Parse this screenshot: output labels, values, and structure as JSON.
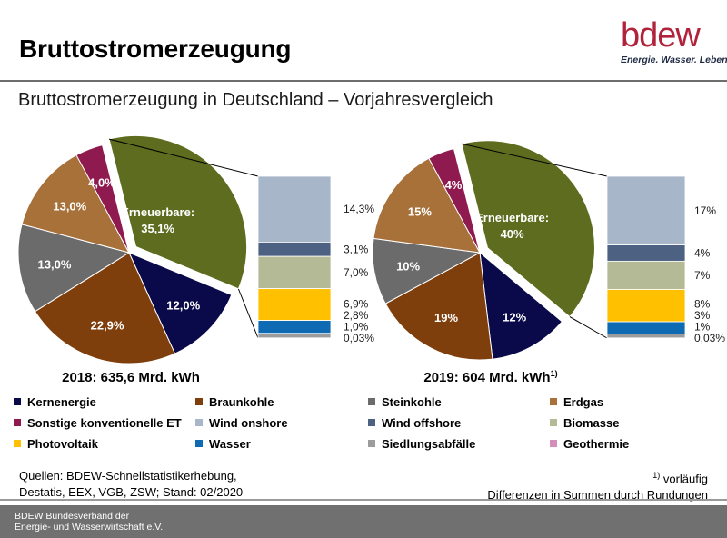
{
  "title": "Bruttostromerzeugung",
  "logo": {
    "word": "bdew",
    "tagline": "Energie. Wasser. Leben."
  },
  "subtitle": "Bruttostromerzeugung in Deutschland – Vorjahresvergleich",
  "colors": {
    "kernenergie": "#0a0a4a",
    "braunkohle": "#7f3f0d",
    "steinkohle": "#6b6b6b",
    "erdgas": "#a9713a",
    "sonstige": "#8f1a4f",
    "erneuerbare": "#5d6c1f",
    "wind_onshore": "#a7b6c9",
    "wind_offshore": "#4d6282",
    "biomasse": "#b4ba95",
    "photovoltaik": "#ffc000",
    "wasser": "#0f6ab4",
    "siedlungsabfaelle": "#9c9c9c",
    "geothermie": "#d38fb8"
  },
  "chart_data": [
    {
      "type": "pie",
      "title": "2018: 635,6 Mrd. kWh",
      "footnote_mark": "",
      "slices": [
        {
          "key": "erneuerbare",
          "label": "Erneuerbare:",
          "value": 35.1,
          "text": "35,1%"
        },
        {
          "key": "kernenergie",
          "label": "",
          "value": 12.0,
          "text": "12,0%"
        },
        {
          "key": "braunkohle",
          "label": "",
          "value": 22.9,
          "text": "22,9%"
        },
        {
          "key": "steinkohle",
          "label": "",
          "value": 13.0,
          "text": "13,0%"
        },
        {
          "key": "erdgas",
          "label": "",
          "value": 13.0,
          "text": "13,0%"
        },
        {
          "key": "sonstige",
          "label": "",
          "value": 4.0,
          "text": "4,0%"
        }
      ],
      "breakdown": [
        {
          "key": "wind_onshore",
          "value": 14.3,
          "text": "14,3%"
        },
        {
          "key": "wind_offshore",
          "value": 3.1,
          "text": "3,1%"
        },
        {
          "key": "biomasse",
          "value": 7.0,
          "text": "7,0%"
        },
        {
          "key": "photovoltaik",
          "value": 6.9,
          "text": "6,9%"
        },
        {
          "key": "wasser",
          "value": 2.8,
          "text": "2,8%"
        },
        {
          "key": "siedlungsabfaelle",
          "value": 1.0,
          "text": "1,0%"
        },
        {
          "key": "geothermie",
          "value": 0.03,
          "text": "0,03%"
        }
      ]
    },
    {
      "type": "pie",
      "title": "2019: 604 Mrd. kWh",
      "footnote_mark": "1)",
      "slices": [
        {
          "key": "erneuerbare",
          "label": "Erneuerbare:",
          "value": 40,
          "text": "40%"
        },
        {
          "key": "kernenergie",
          "label": "",
          "value": 12,
          "text": "12%"
        },
        {
          "key": "braunkohle",
          "label": "",
          "value": 19,
          "text": "19%"
        },
        {
          "key": "steinkohle",
          "label": "",
          "value": 10,
          "text": "10%"
        },
        {
          "key": "erdgas",
          "label": "",
          "value": 15,
          "text": "15%"
        },
        {
          "key": "sonstige",
          "label": "",
          "value": 4,
          "text": "4%"
        }
      ],
      "breakdown": [
        {
          "key": "wind_onshore",
          "value": 17,
          "text": "17%"
        },
        {
          "key": "wind_offshore",
          "value": 4,
          "text": "4%"
        },
        {
          "key": "biomasse",
          "value": 7,
          "text": "7%"
        },
        {
          "key": "photovoltaik",
          "value": 8,
          "text": "8%"
        },
        {
          "key": "wasser",
          "value": 3,
          "text": "3%"
        },
        {
          "key": "siedlungsabfaelle",
          "value": 1,
          "text": "1%"
        },
        {
          "key": "geothermie",
          "value": 0.03,
          "text": "0,03%"
        }
      ]
    }
  ],
  "legend": [
    {
      "key": "kernenergie",
      "label": "Kernenergie"
    },
    {
      "key": "braunkohle",
      "label": "Braunkohle"
    },
    {
      "key": "steinkohle",
      "label": "Steinkohle"
    },
    {
      "key": "erdgas",
      "label": "Erdgas"
    },
    {
      "key": "sonstige",
      "label": "Sonstige konventionelle ET"
    },
    {
      "key": "wind_onshore",
      "label": "Wind onshore"
    },
    {
      "key": "wind_offshore",
      "label": "Wind offshore"
    },
    {
      "key": "biomasse",
      "label": "Biomasse"
    },
    {
      "key": "photovoltaik",
      "label": "Photovoltaik"
    },
    {
      "key": "wasser",
      "label": "Wasser"
    },
    {
      "key": "siedlungsabfaelle",
      "label": "Siedlungsabfälle"
    },
    {
      "key": "geothermie",
      "label": "Geothermie"
    }
  ],
  "sources": {
    "line1": "Quellen: BDEW-Schnellstatistikerhebung,",
    "line2": "Destatis, EEX, VGB, ZSW; Stand: 02/2020"
  },
  "notes": {
    "footnote_mark": "1)",
    "line1": " vorläufig",
    "line2": "Differenzen in Summen durch Rundungen"
  },
  "footer": {
    "line1": "BDEW Bundesverband der",
    "line2": "Energie- und Wasserwirtschaft e.V."
  }
}
